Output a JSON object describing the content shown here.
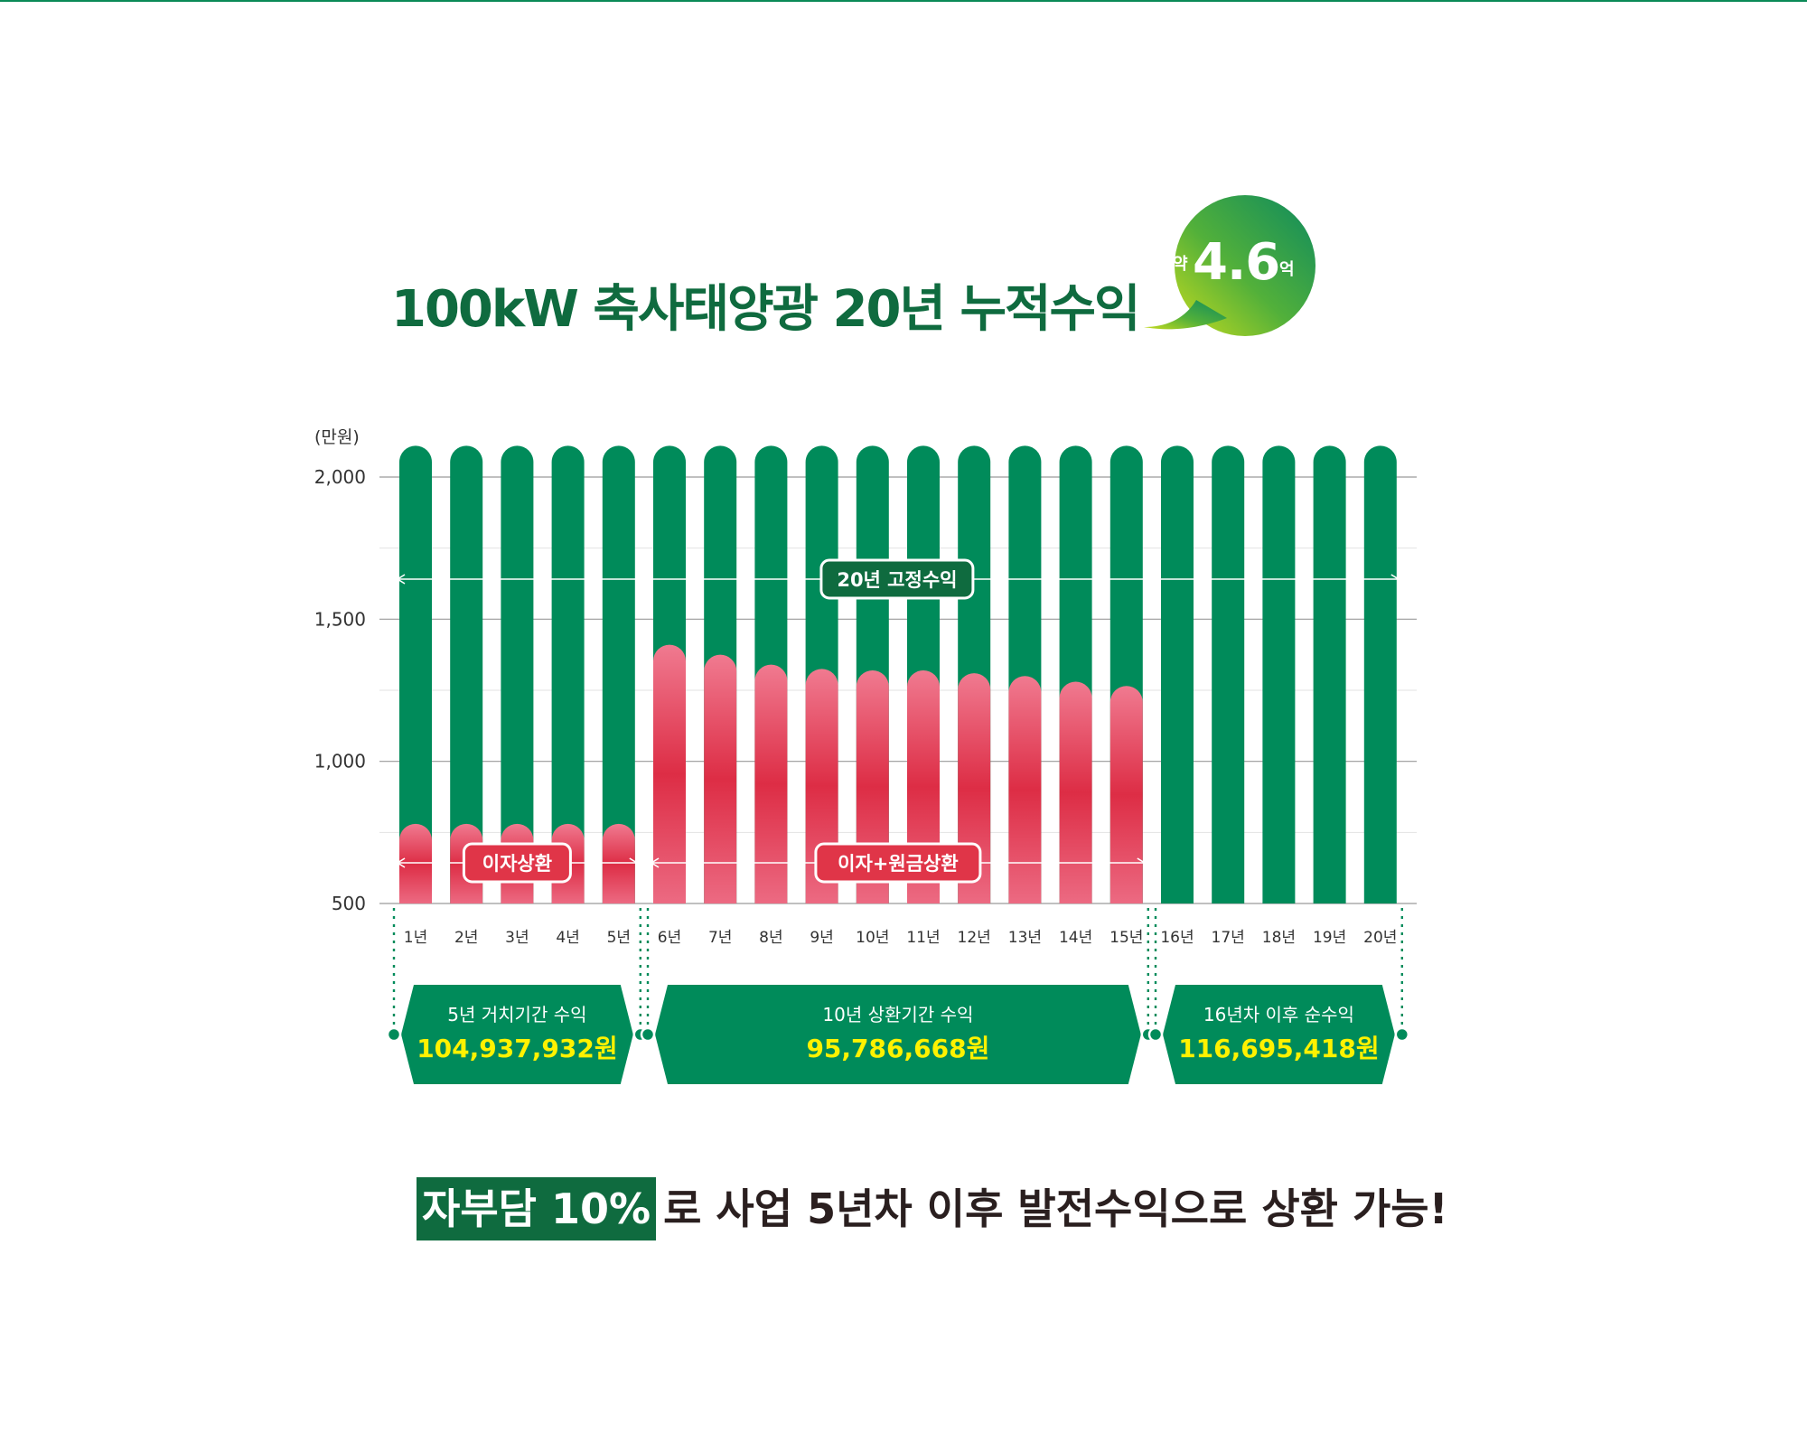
{
  "title": "100kW 축사태양광 20년 누적수익",
  "badge": {
    "prefix": "약",
    "value": "4.6",
    "suffix": "억"
  },
  "chart_data": {
    "type": "bar",
    "title": "100kW 축사태양광 20년 누적수익",
    "ylabel": "(만원)",
    "ylim": [
      500,
      2000
    ],
    "yticks": [
      500,
      1000,
      1500,
      2000
    ],
    "ytick_labels": [
      "500",
      "1,000",
      "1,500",
      "2,000"
    ],
    "grid": true,
    "categories": [
      "1년",
      "2년",
      "3년",
      "4년",
      "5년",
      "6년",
      "7년",
      "8년",
      "9년",
      "10년",
      "11년",
      "12년",
      "13년",
      "14년",
      "15년",
      "16년",
      "17년",
      "18년",
      "19년",
      "20년"
    ],
    "series": [
      {
        "values": [
          2110,
          2110,
          2110,
          2110,
          2110,
          2110,
          2110,
          2110,
          2110,
          2110,
          2110,
          2110,
          2110,
          2110,
          2110,
          2110,
          2110,
          2110,
          2110,
          2110
        ],
        "color": "#008b5a"
      },
      {
        "values": [
          780,
          780,
          780,
          780,
          780,
          1410,
          1375,
          1340,
          1325,
          1320,
          1320,
          1310,
          1300,
          1280,
          1265,
          null,
          null,
          null,
          null,
          null
        ],
        "color": "#e03548"
      }
    ],
    "annotations": {
      "fixed_income": "20년 고정수익",
      "interest": "이자상환",
      "principal": "이자+원금상환"
    },
    "periods": [
      {
        "label": "5년 거치기간 수익",
        "value": "104,937,932원",
        "from": 1,
        "to": 5
      },
      {
        "label": "10년 상환기간 수익",
        "value": "95,786,668원",
        "from": 6,
        "to": 15
      },
      {
        "label": "16년차 이후 순수익",
        "value": "116,695,418원",
        "from": 16,
        "to": 20
      }
    ]
  },
  "colors": {
    "green": "#008b5a",
    "dark_green": "#0f6b3f",
    "red": "#e03548",
    "yellow": "#fff200"
  },
  "footer": {
    "highlight": "자부담 10%",
    "rest": "로 사업 5년차 이후 발전수익으로 상환 가능!"
  }
}
